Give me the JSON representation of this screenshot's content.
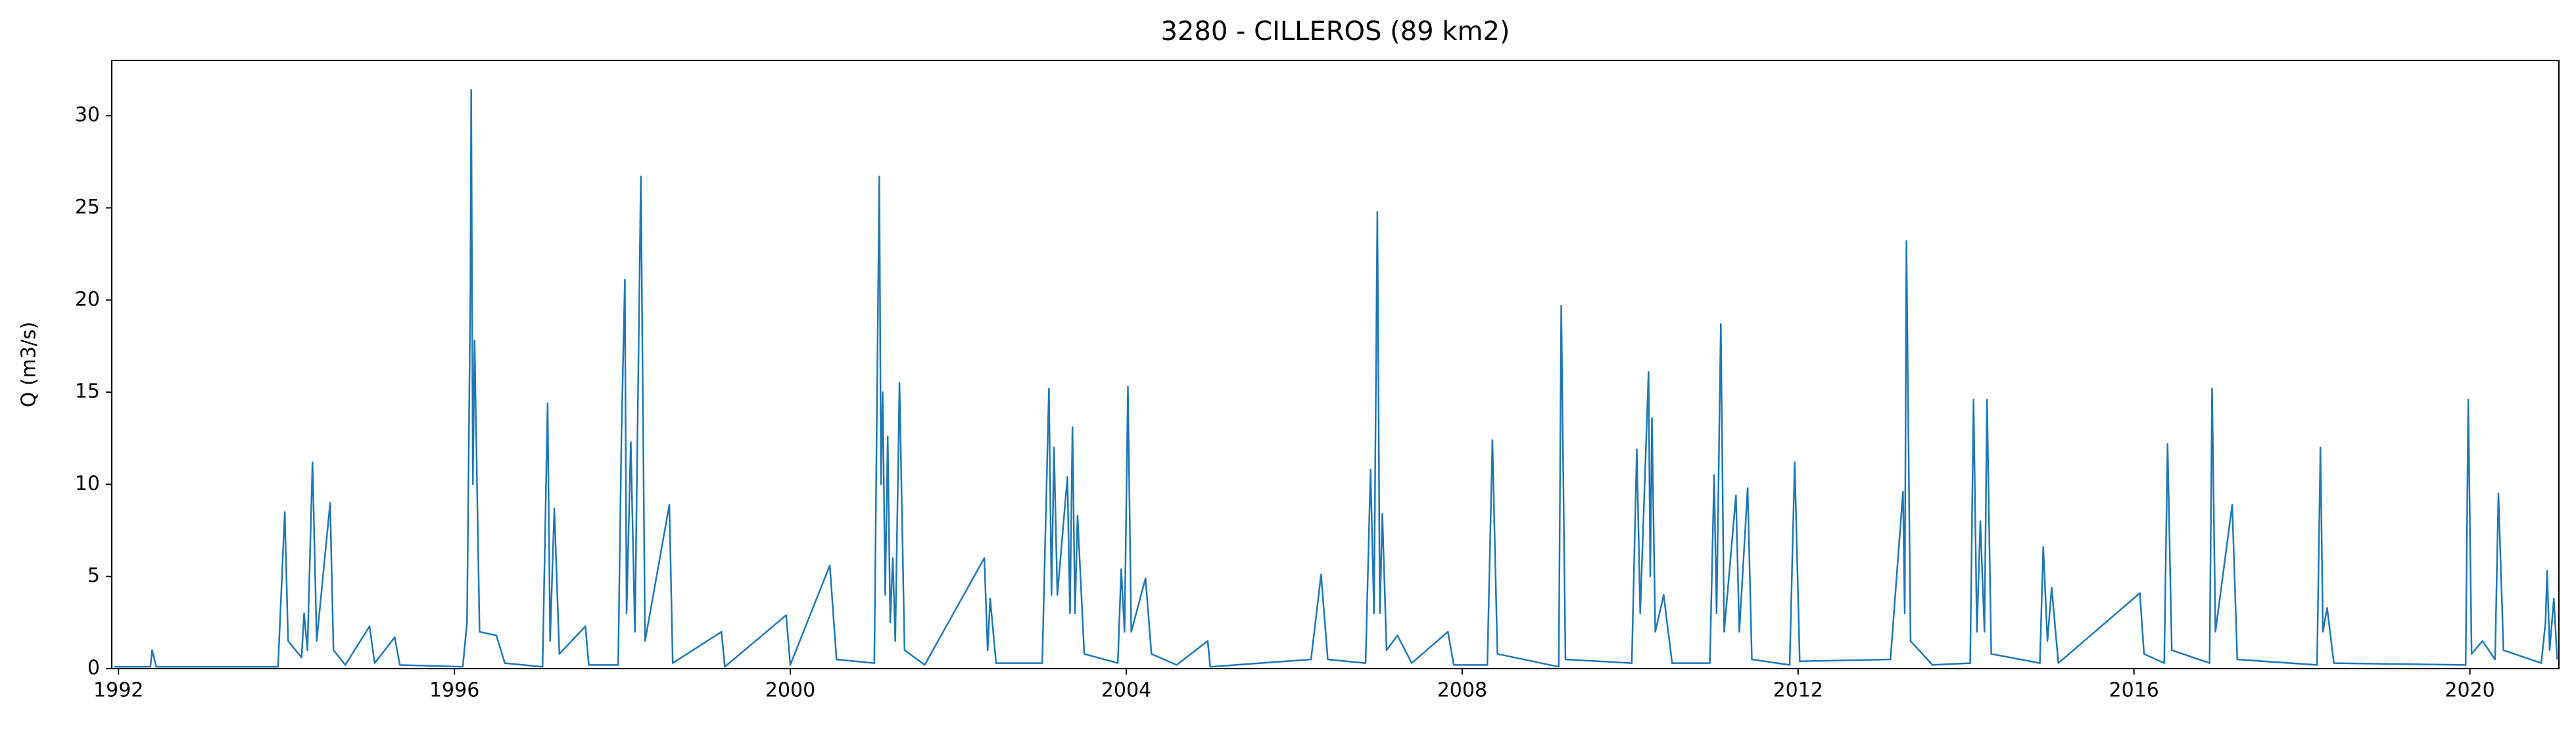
{
  "chart_data": {
    "type": "line",
    "title": "3280 - CILLEROS (89 km2)",
    "ylabel": "Q (m3/s)",
    "color": "#1f77b4",
    "x": [
      1991.95,
      1992.38,
      1992.4,
      1992.45,
      1993.9,
      1993.98,
      1994.02,
      1994.18,
      1994.21,
      1994.25,
      1994.31,
      1994.36,
      1994.52,
      1994.56,
      1994.7,
      1994.99,
      1995.05,
      1995.29,
      1995.35,
      1996.1,
      1996.15,
      1996.19,
      1996.2,
      1996.22,
      1996.24,
      1996.3,
      1996.5,
      1996.6,
      1997.05,
      1997.11,
      1997.14,
      1997.19,
      1997.25,
      1997.56,
      1997.6,
      1997.95,
      1997.99,
      1998.03,
      1998.05,
      1998.1,
      1998.15,
      1998.22,
      1998.27,
      1998.56,
      1998.6,
      1999.18,
      1999.22,
      1999.95,
      2000.0,
      2000.47,
      2000.55,
      2001.0,
      2001.06,
      2001.08,
      2001.1,
      2001.13,
      2001.16,
      2001.19,
      2001.22,
      2001.25,
      2001.3,
      2001.36,
      2001.6,
      2002.31,
      2002.35,
      2002.38,
      2002.45,
      2003.0,
      2003.08,
      2003.11,
      2003.14,
      2003.18,
      2003.3,
      2003.33,
      2003.36,
      2003.39,
      2003.42,
      2003.5,
      2003.9,
      2003.94,
      2003.98,
      2004.02,
      2004.06,
      2004.23,
      2004.3,
      2004.6,
      2004.97,
      2005.0,
      2006.2,
      2006.32,
      2006.4,
      2006.85,
      2006.91,
      2006.95,
      2006.99,
      2007.02,
      2007.05,
      2007.1,
      2007.23,
      2007.4,
      2007.83,
      2007.9,
      2008.3,
      2008.36,
      2008.42,
      2009.15,
      2009.18,
      2009.23,
      2010.02,
      2010.08,
      2010.12,
      2010.22,
      2010.24,
      2010.26,
      2010.3,
      2010.4,
      2010.5,
      2010.95,
      2011.0,
      2011.03,
      2011.08,
      2011.12,
      2011.26,
      2011.3,
      2011.4,
      2011.45,
      2011.9,
      2011.96,
      2012.02,
      2013.1,
      2013.25,
      2013.27,
      2013.29,
      2013.34,
      2013.6,
      2014.05,
      2014.09,
      2014.13,
      2014.17,
      2014.22,
      2014.25,
      2014.3,
      2014.88,
      2014.92,
      2014.97,
      2015.02,
      2015.1,
      2016.07,
      2016.12,
      2016.36,
      2016.4,
      2016.45,
      2016.9,
      2016.93,
      2016.97,
      2017.17,
      2017.23,
      2018.18,
      2018.22,
      2018.25,
      2018.3,
      2018.38,
      2019.95,
      2019.98,
      2020.02,
      2020.15,
      2020.3,
      2020.34,
      2020.4,
      2020.85,
      2020.9,
      2020.92,
      2020.95,
      2021.0,
      2021.04
    ],
    "values": [
      0.1,
      0.1,
      1.0,
      0.1,
      0.1,
      8.5,
      1.5,
      0.6,
      3.0,
      1.0,
      11.2,
      1.5,
      9.0,
      1.0,
      0.2,
      2.3,
      0.3,
      1.7,
      0.2,
      0.1,
      2.5,
      20.4,
      31.4,
      10,
      17.8,
      2.0,
      1.8,
      0.3,
      0.1,
      14.4,
      1.5,
      8.7,
      0.8,
      2.3,
      0.2,
      0.2,
      12.8,
      21.1,
      3,
      12.3,
      2,
      26.7,
      1.5,
      8.9,
      0.3,
      2.0,
      0.1,
      2.9,
      0.2,
      5.6,
      0.5,
      0.3,
      26.7,
      10,
      15.0,
      4,
      12.6,
      2.5,
      6.0,
      1.5,
      15.5,
      1.0,
      0.2,
      6.0,
      1.0,
      3.8,
      0.3,
      0.3,
      15.2,
      4,
      12.0,
      4.0,
      10.4,
      3,
      13.1,
      3,
      8.3,
      0.8,
      0.3,
      5.4,
      2,
      15.3,
      2,
      4.9,
      0.8,
      0.2,
      1.5,
      0.1,
      0.5,
      5.1,
      0.5,
      0.3,
      10.8,
      3,
      24.8,
      3,
      8.4,
      1.0,
      1.8,
      0.3,
      2.0,
      0.2,
      0.2,
      12.4,
      0.8,
      0.1,
      19.7,
      0.5,
      0.3,
      11.9,
      3,
      16.1,
      5,
      13.6,
      2,
      4.0,
      0.3,
      0.3,
      10.5,
      3,
      18.7,
      2,
      9.4,
      2,
      9.8,
      0.5,
      0.2,
      11.2,
      0.4,
      0.5,
      9.6,
      3,
      23.2,
      1.5,
      0.2,
      0.3,
      14.6,
      2,
      8.0,
      2,
      14.6,
      0.8,
      0.3,
      6.6,
      1.5,
      4.4,
      0.3,
      4.1,
      0.8,
      0.3,
      12.2,
      1,
      0.3,
      15.2,
      2,
      8.9,
      0.5,
      0.2,
      12.0,
      2,
      3.3,
      0.3,
      0.2,
      14.6,
      0.8,
      1.5,
      0.5,
      9.5,
      1.0,
      0.3,
      2.5,
      5.3,
      1,
      3.8,
      0.5
    ],
    "xlim": [
      1991.92,
      2021.06
    ],
    "xticks": [
      1992,
      1996,
      2000,
      2004,
      2008,
      2012,
      2016,
      2020
    ],
    "ylim": [
      0,
      33
    ],
    "yticks": [
      0,
      5,
      10,
      15,
      20,
      25,
      30
    ]
  }
}
